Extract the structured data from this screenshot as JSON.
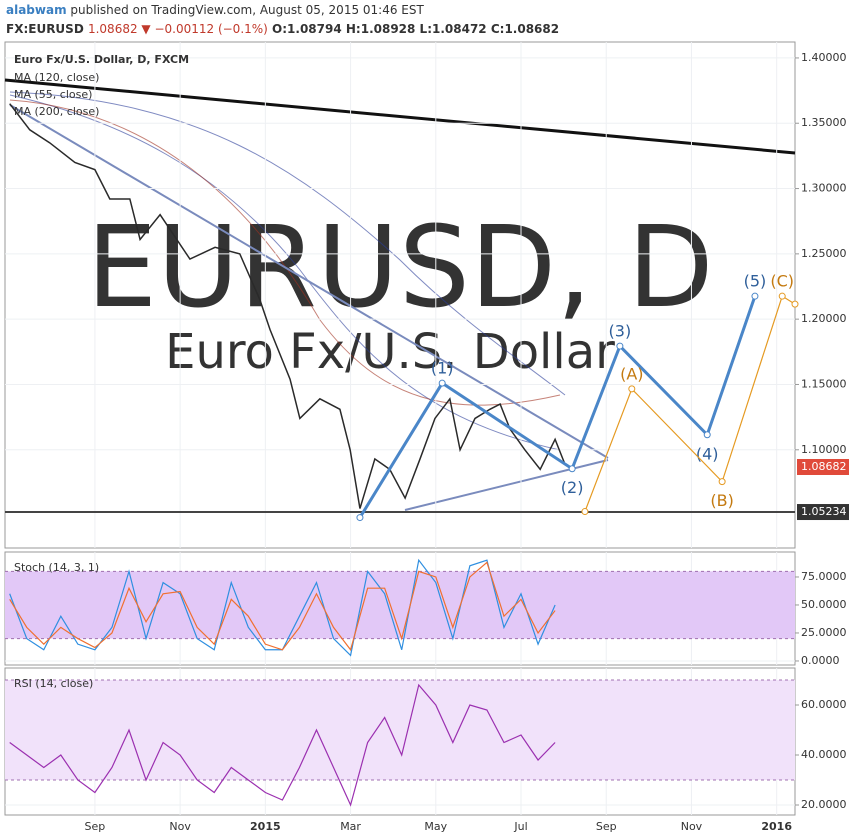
{
  "header": {
    "author": "alabwam",
    "published": "published on TradingView.com, August 05, 2015 01:46 EST",
    "symbol": "FX:EURUSD",
    "quote": "1.08682 ▼ −0.00112 (−0.1%)",
    "ohlc": "O:1.08794 H:1.08928 L:1.08472 C:1.08682"
  },
  "watermark": {
    "title": "EURUSD, D",
    "subtitle": "Euro Fx/U.S. Dollar"
  },
  "chart_data": [
    {
      "type": "line",
      "xlim": [
        -2.11,
        16.43
      ],
      "ylim": [
        1.0248,
        1.4122
      ],
      "xticks": [
        {
          "value": 0,
          "label": "Sep"
        },
        {
          "value": 2,
          "label": "Nov"
        },
        {
          "value": 4,
          "label": "2015"
        },
        {
          "value": 6,
          "label": "Mar"
        },
        {
          "value": 8,
          "label": "May"
        },
        {
          "value": 10,
          "label": "Jul"
        },
        {
          "value": 12,
          "label": "Sep"
        },
        {
          "value": 14,
          "label": "Nov"
        },
        {
          "value": 16,
          "label": "2016"
        }
      ],
      "yticks": [
        {
          "value": 1.1,
          "label": "1.10000"
        },
        {
          "value": 1.15,
          "label": "1.15000"
        },
        {
          "value": 1.2,
          "label": "1.20000"
        },
        {
          "value": 1.25,
          "label": "1.25000"
        },
        {
          "value": 1.3,
          "label": "1.30000"
        },
        {
          "value": 1.35,
          "label": "1.35000"
        },
        {
          "value": 1.4,
          "label": "1.40000"
        }
      ],
      "legend": [
        "MA (120, close)",
        "MA (55, close)",
        "MA (200, close)"
      ],
      "series": [
        {
          "name": "Euro Fx/U.S. Dollar, D, FXCM",
          "color": "#2a2a2a",
          "x": [
            -2.0,
            -1.53,
            -1.06,
            -0.47,
            0,
            0.35,
            0.82,
            1.06,
            1.53,
            2.23,
            2.82,
            3.4,
            3.87,
            4.11,
            4.58,
            4.81,
            5.28,
            5.75,
            5.99,
            6.22,
            6.57,
            6.92,
            7.28,
            7.63,
            7.98,
            8.33,
            8.57,
            8.92,
            9.27,
            9.51,
            9.74,
            10.09,
            10.45,
            10.8,
            11.03
          ],
          "values": [
            1.365,
            1.345,
            1.335,
            1.32,
            1.3145,
            1.292,
            1.292,
            1.261,
            1.28,
            1.246,
            1.255,
            1.25,
            1.215,
            1.192,
            1.154,
            1.124,
            1.139,
            1.131,
            1.1,
            1.055,
            1.093,
            1.085,
            1.063,
            1.093,
            1.124,
            1.139,
            1.1,
            1.124,
            1.131,
            1.135,
            1.116,
            1.1,
            1.085,
            1.108,
            1.089
          ]
        }
      ],
      "waves": [
        {
          "color": "#4a86c8",
          "x": [
            6.22,
            8.15,
            11.2,
            12.32,
            14.37,
            15.49
          ],
          "values": [
            1.0481,
            1.151,
            1.0855,
            1.1794,
            1.1115,
            1.2176
          ],
          "labels": [
            null,
            "(1)",
            "(2)",
            "(3)",
            "(4)",
            "(5)"
          ]
        },
        {
          "color": "#e59a22",
          "x": [
            11.5,
            12.6,
            14.72,
            16.13,
            16.43
          ],
          "values": [
            1.0527,
            1.1466,
            1.0756,
            1.2176,
            1.2115
          ],
          "labels": [
            null,
            "(A)",
            "(B)",
            "(C)",
            null
          ]
        }
      ],
      "hline": {
        "value": 1.05234,
        "label": "1.05234"
      },
      "last": {
        "value": 1.08682,
        "label": "1.08682"
      }
    },
    {
      "type": "oscillator",
      "title": "Stoch (14, 3, 1)",
      "ylim": [
        -3.6,
        97.3
      ],
      "band": [
        20,
        80
      ],
      "yticks": [
        {
          "value": 0,
          "label": "0.0000"
        },
        {
          "value": 25,
          "label": "25.0000"
        },
        {
          "value": 50,
          "label": "50.0000"
        },
        {
          "value": 75,
          "label": "75.0000"
        }
      ],
      "x": [
        -2,
        -1.6,
        -1.2,
        -0.8,
        -0.4,
        0,
        0.4,
        0.8,
        1.2,
        1.6,
        2,
        2.4,
        2.8,
        3.2,
        3.6,
        4,
        4.4,
        4.8,
        5.2,
        5.6,
        6,
        6.4,
        6.8,
        7.2,
        7.6,
        8,
        8.4,
        8.8,
        9.2,
        9.6,
        10,
        10.4,
        10.8
      ],
      "series": [
        {
          "name": "%K",
          "color": "#2f8fe0",
          "values": [
            60,
            20,
            10,
            40,
            15,
            10,
            30,
            80,
            20,
            70,
            60,
            20,
            10,
            70,
            30,
            10,
            10,
            40,
            70,
            20,
            5,
            80,
            60,
            10,
            90,
            70,
            20,
            85,
            90,
            30,
            60,
            15,
            50
          ]
        },
        {
          "name": "%D",
          "color": "#f07030",
          "values": [
            55,
            30,
            15,
            30,
            20,
            12,
            25,
            65,
            35,
            60,
            62,
            30,
            15,
            55,
            40,
            15,
            10,
            30,
            60,
            30,
            10,
            65,
            65,
            20,
            80,
            75,
            30,
            75,
            88,
            40,
            55,
            25,
            45
          ]
        }
      ]
    },
    {
      "type": "oscillator",
      "title": "RSI (14, close)",
      "ylim": [
        16,
        74.8
      ],
      "band": [
        30,
        70
      ],
      "yticks": [
        {
          "value": 20,
          "label": "20.0000"
        },
        {
          "value": 40,
          "label": "40.0000"
        },
        {
          "value": 60,
          "label": "60.0000"
        }
      ],
      "x": [
        -2,
        -1.6,
        -1.2,
        -0.8,
        -0.4,
        0,
        0.4,
        0.8,
        1.2,
        1.6,
        2,
        2.4,
        2.8,
        3.2,
        3.6,
        4,
        4.4,
        4.8,
        5.2,
        5.6,
        6,
        6.4,
        6.8,
        7.2,
        7.6,
        8,
        8.4,
        8.8,
        9.2,
        9.6,
        10,
        10.4,
        10.8
      ],
      "series": [
        {
          "name": "RSI",
          "color": "#9b30b0",
          "values": [
            45,
            40,
            35,
            40,
            30,
            25,
            35,
            50,
            30,
            45,
            40,
            30,
            25,
            35,
            30,
            25,
            22,
            35,
            50,
            35,
            20,
            45,
            55,
            40,
            68,
            60,
            45,
            60,
            58,
            45,
            48,
            38,
            45
          ]
        }
      ]
    }
  ]
}
